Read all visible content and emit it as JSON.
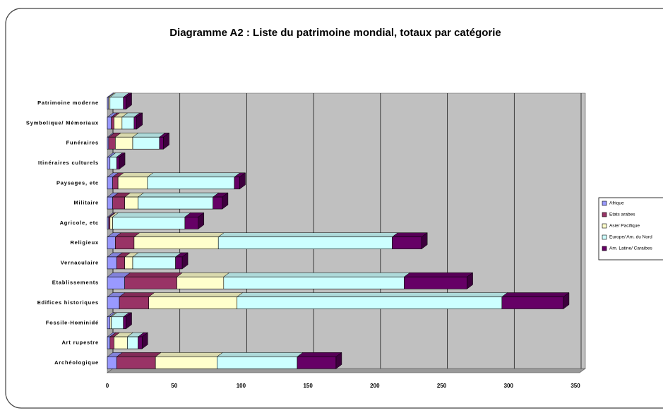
{
  "chart_data": {
    "type": "bar",
    "orientation": "horizontal",
    "stacked": true,
    "title": "Diagramme A2 : Liste du patrimoine mondial, totaux par catégorie",
    "categories": [
      "Archéologique",
      "Art rupestre",
      "Fossile-Hominidé",
      "Edifices historiques",
      "Etablissements",
      "Vernaculaire",
      "Religieux",
      "Agricole, etc",
      "Militaire",
      "Paysages, etc",
      "Itinéraires culturels",
      "Funéraires",
      "Symbolique/ Mémoriaux",
      "Patrimoine moderne"
    ],
    "series": [
      {
        "name": "Afrique",
        "color": "#9999ff",
        "values": [
          7,
          2,
          2,
          9,
          13,
          7,
          6,
          1,
          4,
          4,
          2,
          1,
          3,
          1
        ]
      },
      {
        "name": "Etats arabes",
        "color": "#993366",
        "values": [
          29,
          3,
          0,
          22,
          39,
          6,
          14,
          1,
          9,
          4,
          0,
          5,
          2,
          0
        ]
      },
      {
        "name": "Asie/ Pacifique",
        "color": "#ffffcc",
        "values": [
          46,
          10,
          1,
          66,
          35,
          6,
          63,
          2,
          10,
          22,
          0,
          13,
          6,
          1
        ]
      },
      {
        "name": "Europe/ Am. du Nord",
        "color": "#ccffff",
        "values": [
          60,
          8,
          9,
          198,
          135,
          32,
          130,
          54,
          56,
          65,
          5,
          20,
          9,
          10
        ]
      },
      {
        "name": "Am. Latine/ Caraibes",
        "color": "#660066",
        "values": [
          29,
          3,
          2,
          46,
          47,
          5,
          22,
          10,
          7,
          4,
          2,
          3,
          2,
          2
        ]
      }
    ],
    "xlim": [
      0,
      350
    ],
    "xticks": [
      0,
      50,
      100,
      150,
      200,
      250,
      300,
      350
    ],
    "grid": true
  }
}
